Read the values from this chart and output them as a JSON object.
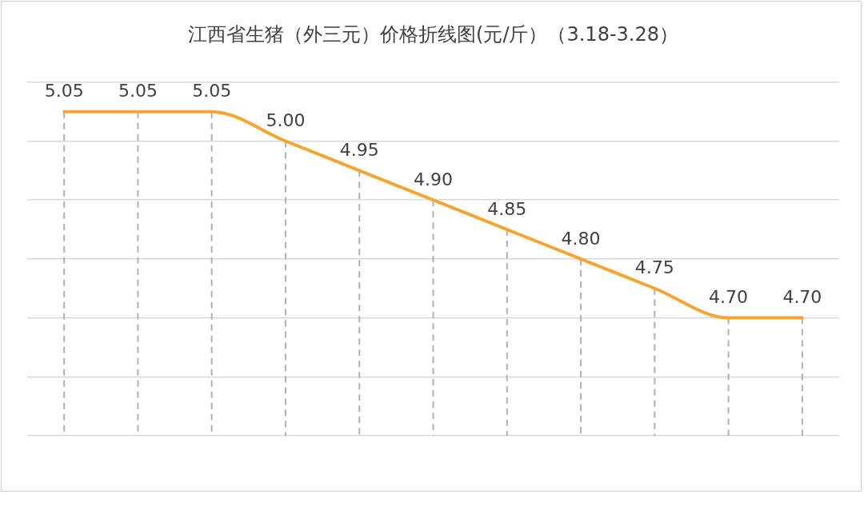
{
  "chart_data": {
    "type": "line",
    "title": "江西省生猪（外三元）价格折线图(元/斤）（3.18-3.28）",
    "categories": [
      null,
      null,
      null,
      null,
      null,
      null,
      null,
      null,
      null,
      null,
      null
    ],
    "series": [
      {
        "color": "#f7a532",
        "values": [
          5.05,
          5.05,
          5.05,
          5.0,
          4.95,
          4.9,
          4.85,
          4.8,
          4.75,
          4.7,
          4.7
        ],
        "value_labels": [
          "5.05",
          "5.05",
          "5.05",
          "5.00",
          "4.95",
          "4.90",
          "4.85",
          "4.80",
          "4.75",
          "4.70",
          "4.70"
        ]
      }
    ],
    "ylim": [
      4.5,
      5.1
    ],
    "yticks": [
      4.5,
      4.6,
      4.7,
      4.8,
      4.9,
      5.0,
      5.1
    ],
    "grid": true,
    "tick_labels": false,
    "legend": false,
    "marker": "none",
    "line_style": "solid"
  }
}
